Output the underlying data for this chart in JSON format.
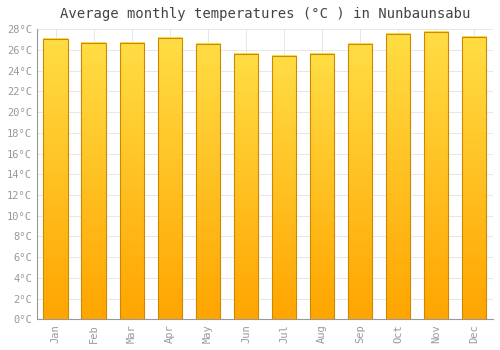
{
  "title": "Average monthly temperatures (°C ) in Nunbaunsabu",
  "months": [
    "Jan",
    "Feb",
    "Mar",
    "Apr",
    "May",
    "Jun",
    "Jul",
    "Aug",
    "Sep",
    "Oct",
    "Nov",
    "Dec"
  ],
  "temperatures": [
    27.0,
    26.7,
    26.7,
    27.1,
    26.6,
    25.6,
    25.4,
    25.6,
    26.6,
    27.5,
    27.7,
    27.2
  ],
  "ylim": [
    0,
    28
  ],
  "ytick_step": 2,
  "bar_color_light": "#FFDD44",
  "bar_color_dark": "#FFA500",
  "bar_edge_color": "#CC8800",
  "background_color": "#FFFFFF",
  "grid_color": "#DDDDDD",
  "title_fontsize": 10,
  "tick_fontsize": 7.5,
  "tick_label_color": "#999999"
}
